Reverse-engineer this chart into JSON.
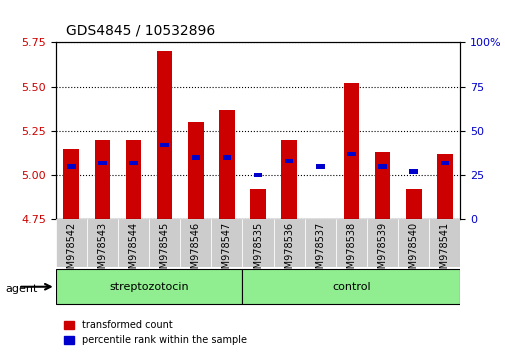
{
  "title": "GDS4845 / 10532896",
  "samples": [
    "GSM978542",
    "GSM978543",
    "GSM978544",
    "GSM978545",
    "GSM978546",
    "GSM978547",
    "GSM978535",
    "GSM978536",
    "GSM978537",
    "GSM978538",
    "GSM978539",
    "GSM978540",
    "GSM978541"
  ],
  "red_top": [
    5.15,
    5.2,
    5.2,
    5.7,
    5.3,
    5.37,
    4.92,
    5.2,
    4.75,
    5.52,
    5.13,
    4.92,
    5.12
  ],
  "red_bot": [
    4.75,
    4.75,
    4.75,
    4.75,
    4.75,
    4.75,
    4.65,
    4.75,
    4.67,
    4.75,
    4.75,
    4.65,
    4.75
  ],
  "blue_val": [
    5.05,
    5.07,
    5.07,
    5.17,
    5.1,
    5.1,
    5.0,
    5.08,
    5.05,
    5.12,
    5.05,
    5.02,
    5.07
  ],
  "ylim_left": [
    4.75,
    5.75
  ],
  "ylim_right": [
    0,
    100
  ],
  "yticks_left": [
    4.75,
    5.0,
    5.25,
    5.5,
    5.75
  ],
  "yticks_right": [
    0,
    25,
    50,
    75,
    100
  ],
  "group_labels": [
    "streptozotocin",
    "control"
  ],
  "group_ranges": [
    [
      0,
      6
    ],
    [
      6,
      13
    ]
  ],
  "agent_label": "agent",
  "bar_color_red": "#CC0000",
  "bar_color_blue": "#0000CC",
  "legend_red": "transformed count",
  "legend_blue": "percentile rank within the sample",
  "bar_width": 0.5,
  "xlim": [
    -0.5,
    12.5
  ],
  "tick_label_color_left": "#CC0000",
  "tick_label_color_right": "#0000CC"
}
